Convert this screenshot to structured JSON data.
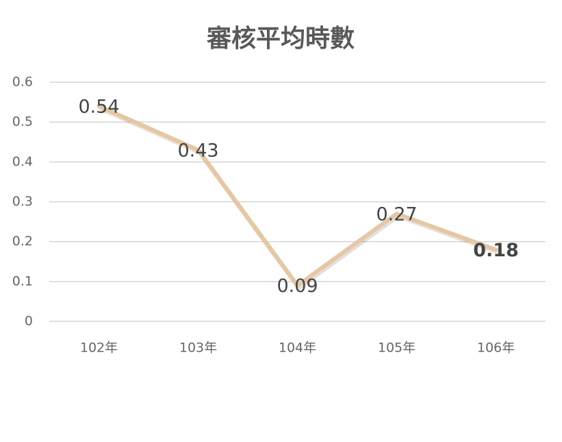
{
  "chart_data": {
    "type": "line",
    "title": "審核平均時數",
    "categories": [
      "102年",
      "103年",
      "104年",
      "105年",
      "106年"
    ],
    "values": [
      0.54,
      0.43,
      0.09,
      0.27,
      0.18
    ],
    "color": "#e8c7a0",
    "ylim": [
      0,
      0.6
    ],
    "yticks": [
      0,
      0.1,
      0.2,
      0.3,
      0.4,
      0.5,
      0.6
    ],
    "grid": true
  }
}
